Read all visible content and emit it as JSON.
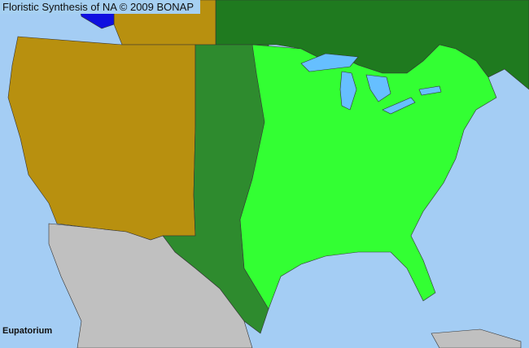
{
  "title": "Floristic Synthesis of NA © 2009 BONAP",
  "taxon_label": "Eupatorium",
  "colors": {
    "ocean": "#a4cdf4",
    "lakes": "#66bfff",
    "native_state_present": "#2e8b2e",
    "county_present": "#33ff33",
    "canada_present": "#1f7a1f",
    "absent_state": "#b8900f",
    "noxious_or_rare": "#1010e0",
    "non_data_region": "#c0c0c0",
    "borders": "#333333"
  }
}
